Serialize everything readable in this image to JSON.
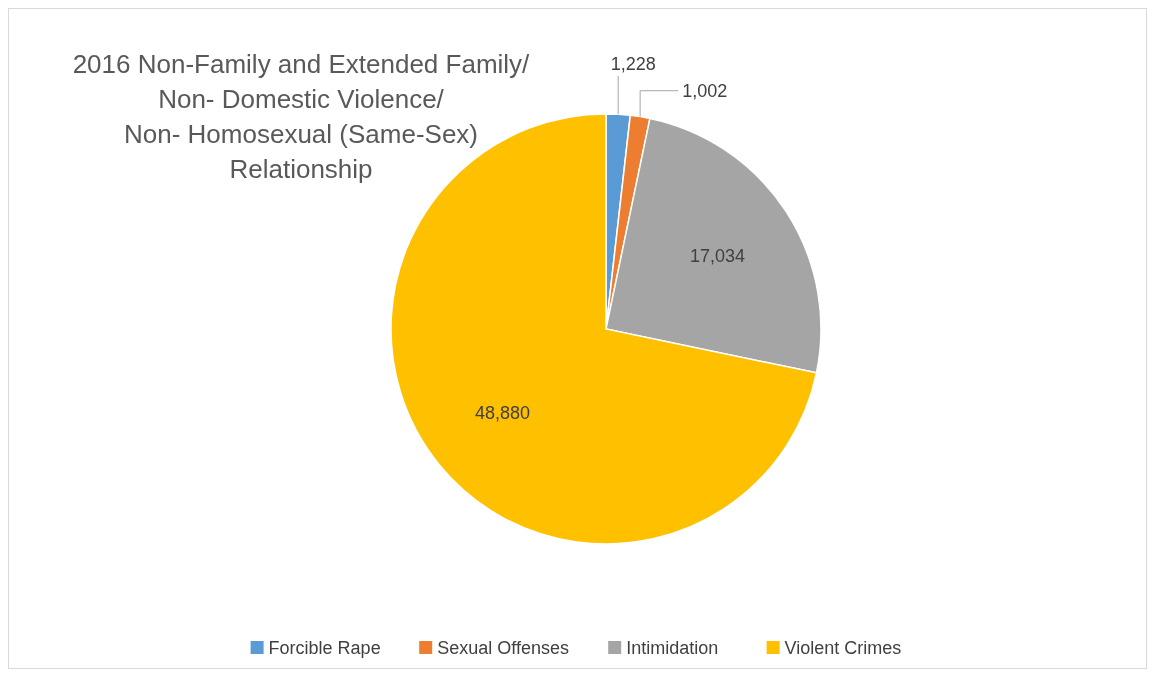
{
  "chart_data": {
    "type": "pie",
    "title": "2016 Non-Family and Extended Family/\nNon- Domestic Violence/\nNon- Homosexual (Same-Sex)\nRelationship",
    "categories": [
      "Forcible Rape",
      "Sexual Offenses",
      "Intimidation",
      "Violent Crimes"
    ],
    "values": [
      1228,
      1002,
      17034,
      48880
    ],
    "colors": [
      "#5b9bd5",
      "#ed7d31",
      "#a5a5a5",
      "#ffc000"
    ],
    "value_labels": [
      "1,228",
      "1,002",
      "17,034",
      "48,880"
    ],
    "legend": "bottom"
  }
}
